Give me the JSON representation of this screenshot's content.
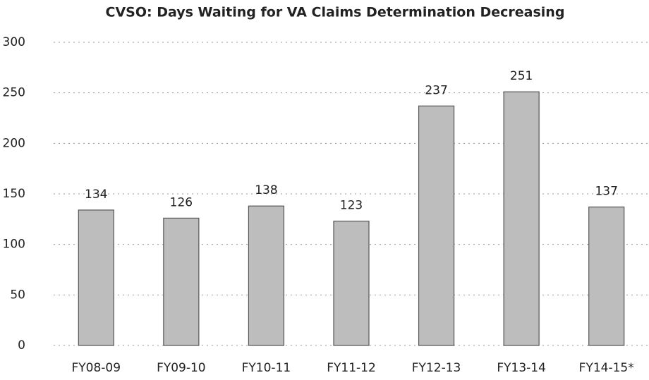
{
  "chart_data": {
    "type": "bar",
    "title": "CVSO: Days Waiting for VA Claims Determination Decreasing",
    "categories": [
      "FY08-09",
      "FY09-10",
      "FY10-11",
      "FY11-12",
      "FY12-13",
      "FY13-14",
      "FY14-15*"
    ],
    "values": [
      134,
      126,
      138,
      123,
      237,
      251,
      137
    ],
    "color": "#bdbdbd",
    "ylim": [
      0,
      300
    ],
    "yticks": [
      0,
      50,
      100,
      150,
      200,
      250,
      300
    ],
    "grid": true
  }
}
